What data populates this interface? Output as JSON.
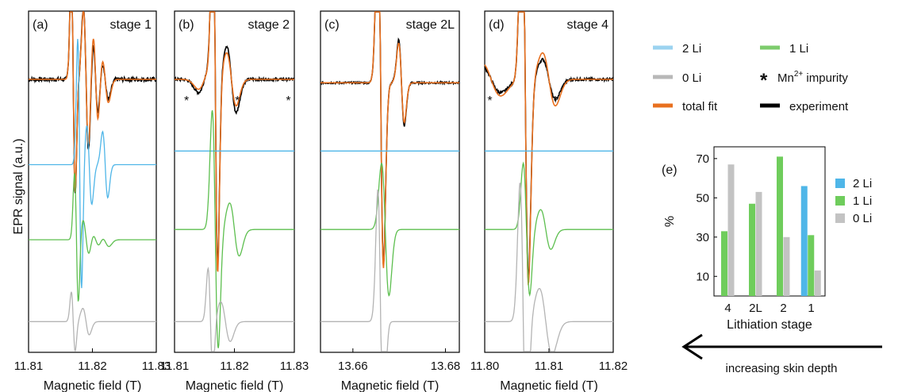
{
  "chart_data": [
    {
      "type": "line",
      "panel": "(a)",
      "stage_label": "stage 1",
      "xlabel": "Magnetic field (T)",
      "ylabel": "EPR signal (a.u.)",
      "xlim": [
        11.81,
        11.83
      ],
      "xticks": [
        "11.81",
        "11.82",
        "11.83"
      ],
      "series": [
        {
          "name": "experiment",
          "color": "#000000",
          "offset": 0.8,
          "lines": [
            {
              "c": 11.817,
              "w": 0.0003,
              "a": 0.35
            },
            {
              "c": 11.819,
              "w": 0.0004,
              "a": 0.22
            },
            {
              "c": 11.8205,
              "w": 0.0004,
              "a": 0.12
            },
            {
              "c": 11.822,
              "w": 0.0005,
              "a": 0.06
            }
          ],
          "noise": 0.012
        },
        {
          "name": "total fit",
          "color": "#e8701f",
          "offset": 0.8,
          "lines": [
            {
              "c": 11.817,
              "w": 0.0003,
              "a": 0.34
            },
            {
              "c": 11.819,
              "w": 0.0004,
              "a": 0.21
            },
            {
              "c": 11.8205,
              "w": 0.0004,
              "a": 0.14
            },
            {
              "c": 11.822,
              "w": 0.0005,
              "a": 0.07
            }
          ]
        },
        {
          "name": "2 Li",
          "color": "#4fb6e8",
          "offset": 0.55,
          "lines": [
            {
              "c": 11.818,
              "w": 0.0003,
              "a": 0.38
            },
            {
              "c": 11.8195,
              "w": 0.0004,
              "a": 0.12
            },
            {
              "c": 11.822,
              "w": 0.0004,
              "a": 0.1
            }
          ]
        },
        {
          "name": "1 Li",
          "color": "#5dbf4f",
          "offset": 0.33,
          "lines": [
            {
              "c": 11.8175,
              "w": 0.0003,
              "a": 0.2
            },
            {
              "c": 11.819,
              "w": 0.0005,
              "a": 0.06
            },
            {
              "c": 11.8205,
              "w": 0.0006,
              "a": 0.03
            },
            {
              "c": 11.822,
              "w": 0.0006,
              "a": 0.02
            }
          ]
        },
        {
          "name": "0 Li",
          "color": "#b4b4b4",
          "offset": 0.09,
          "lines": [
            {
              "c": 11.817,
              "w": 0.0003,
              "a": 0.09
            },
            {
              "c": 11.819,
              "w": 0.0005,
              "a": 0.04
            }
          ]
        }
      ]
    },
    {
      "type": "line",
      "panel": "(b)",
      "stage_label": "stage 2",
      "xlabel": "Magnetic field (T)",
      "xlim": [
        11.81,
        11.83
      ],
      "xticks": [
        "11.81",
        "11.82",
        "11.83"
      ],
      "series": [
        {
          "name": "experiment",
          "color": "#000000",
          "offset": 0.8,
          "lines": [
            {
              "c": 11.8168,
              "w": 0.0004,
              "a": 0.58
            },
            {
              "c": 11.815,
              "w": 0.001,
              "a": -0.04
            },
            {
              "c": 11.8195,
              "w": 0.0008,
              "a": 0.1
            }
          ],
          "noise": 0.008
        },
        {
          "name": "total fit",
          "color": "#e8701f",
          "offset": 0.8,
          "lines": [
            {
              "c": 11.8168,
              "w": 0.0004,
              "a": 0.6
            },
            {
              "c": 11.815,
              "w": 0.001,
              "a": -0.03
            },
            {
              "c": 11.8195,
              "w": 0.0008,
              "a": 0.08
            }
          ]
        },
        {
          "name": "2 Li",
          "color": "#4fb6e8",
          "offset": 0.59,
          "lines": []
        },
        {
          "name": "1 Li",
          "color": "#5dbf4f",
          "offset": 0.36,
          "lines": [
            {
              "c": 11.8168,
              "w": 0.0005,
              "a": 0.36
            },
            {
              "c": 11.82,
              "w": 0.0008,
              "a": 0.08
            }
          ]
        },
        {
          "name": "0 Li",
          "color": "#b4b4b4",
          "offset": 0.09,
          "lines": [
            {
              "c": 11.816,
              "w": 0.0004,
              "a": 0.16
            },
            {
              "c": 11.8185,
              "w": 0.0008,
              "a": 0.06
            }
          ]
        }
      ],
      "annotations": [
        {
          "text": "*",
          "x": 11.812
        },
        {
          "text": "*",
          "x": 11.8205
        },
        {
          "text": "*",
          "x": 11.829
        }
      ]
    },
    {
      "type": "line",
      "panel": "(c)",
      "stage_label": "stage 2L",
      "xlabel": "Magnetic field (T)",
      "xlim": [
        13.653,
        13.683
      ],
      "xticks": [
        "13.66",
        "13.68"
      ],
      "series": [
        {
          "name": "experiment",
          "color": "#000000",
          "offset": 0.79,
          "lines": [
            {
              "c": 13.666,
              "w": 0.0006,
              "a": 0.55
            },
            {
              "c": 13.6705,
              "w": 0.0006,
              "a": 0.13
            }
          ],
          "noise": 0.006
        },
        {
          "name": "total fit",
          "color": "#e8701f",
          "offset": 0.79,
          "lines": [
            {
              "c": 13.666,
              "w": 0.0006,
              "a": 0.56
            },
            {
              "c": 13.6705,
              "w": 0.0006,
              "a": 0.12
            }
          ]
        },
        {
          "name": "2 Li",
          "color": "#4fb6e8",
          "offset": 0.59,
          "lines": []
        },
        {
          "name": "1 Li",
          "color": "#5dbf4f",
          "offset": 0.36,
          "lines": [
            {
              "c": 13.667,
              "w": 0.0008,
              "a": 0.2
            }
          ]
        },
        {
          "name": "0 Li",
          "color": "#b4b4b4",
          "offset": 0.09,
          "lines": [
            {
              "c": 13.666,
              "w": 0.0006,
              "a": 0.4
            }
          ]
        }
      ]
    },
    {
      "type": "line",
      "panel": "(d)",
      "stage_label": "stage 4",
      "xlabel": "Magnetic field (T)",
      "xlim": [
        11.8,
        11.82
      ],
      "xticks": [
        "11.80",
        "11.81",
        "11.82"
      ],
      "series": [
        {
          "name": "experiment",
          "color": "#000000",
          "offset": 0.8,
          "lines": [
            {
              "c": 11.8063,
              "w": 0.0005,
              "a": 0.6
            },
            {
              "c": 11.801,
              "w": 0.0015,
              "a": 0.04
            },
            {
              "c": 11.81,
              "w": 0.001,
              "a": 0.06
            }
          ],
          "noise": 0.008
        },
        {
          "name": "total fit",
          "color": "#e8701f",
          "offset": 0.8,
          "lines": [
            {
              "c": 11.8063,
              "w": 0.0005,
              "a": 0.62
            },
            {
              "c": 11.801,
              "w": 0.0015,
              "a": 0.05
            },
            {
              "c": 11.81,
              "w": 0.001,
              "a": 0.08
            }
          ]
        },
        {
          "name": "2 Li",
          "color": "#4fb6e8",
          "offset": 0.59,
          "lines": []
        },
        {
          "name": "1 Li",
          "color": "#5dbf4f",
          "offset": 0.36,
          "lines": [
            {
              "c": 11.8065,
              "w": 0.0005,
              "a": 0.2
            },
            {
              "c": 11.8095,
              "w": 0.0008,
              "a": 0.06
            }
          ]
        },
        {
          "name": "0 Li",
          "color": "#b4b4b4",
          "offset": 0.09,
          "lines": [
            {
              "c": 11.806,
              "w": 0.0005,
              "a": 0.42
            },
            {
              "c": 11.8095,
              "w": 0.001,
              "a": 0.1
            }
          ]
        }
      ],
      "annotations": [
        {
          "text": "*",
          "x": 11.8008
        },
        {
          "text": "*",
          "x": 11.811
        }
      ]
    },
    {
      "type": "bar",
      "panel": "(e)",
      "xlabel": "Lithiation stage",
      "ylabel": "%",
      "categories": [
        "4",
        "2L",
        "2",
        "1"
      ],
      "ylim": [
        0,
        76
      ],
      "yticks": [
        10,
        30,
        50,
        70
      ],
      "series": [
        {
          "name": "2 Li",
          "color": "#4fb6e8",
          "values": [
            0,
            0,
            0,
            56
          ]
        },
        {
          "name": "1 Li",
          "color": "#6fcd5c",
          "values": [
            33,
            47,
            71,
            31
          ]
        },
        {
          "name": "0 Li",
          "color": "#c3c3c3",
          "values": [
            67,
            53,
            30,
            13
          ]
        }
      ],
      "legend": "right"
    }
  ],
  "legend": {
    "items": [
      {
        "label": "2 Li",
        "color": "#9bd3f0",
        "marker": "line"
      },
      {
        "label": "1 Li",
        "color": "#7dcc6d",
        "marker": "line"
      },
      {
        "label": "0 Li",
        "color": "#b8b8b8",
        "marker": "line"
      },
      {
        "label": "Mn",
        "sup": "2+",
        "suffix": " impurity",
        "marker": "star"
      },
      {
        "label": "total fit",
        "color": "#e8701f",
        "marker": "line"
      },
      {
        "label": "experiment",
        "color": "#000000",
        "marker": "line"
      }
    ]
  },
  "arrow": {
    "text": "increasing skin depth"
  }
}
